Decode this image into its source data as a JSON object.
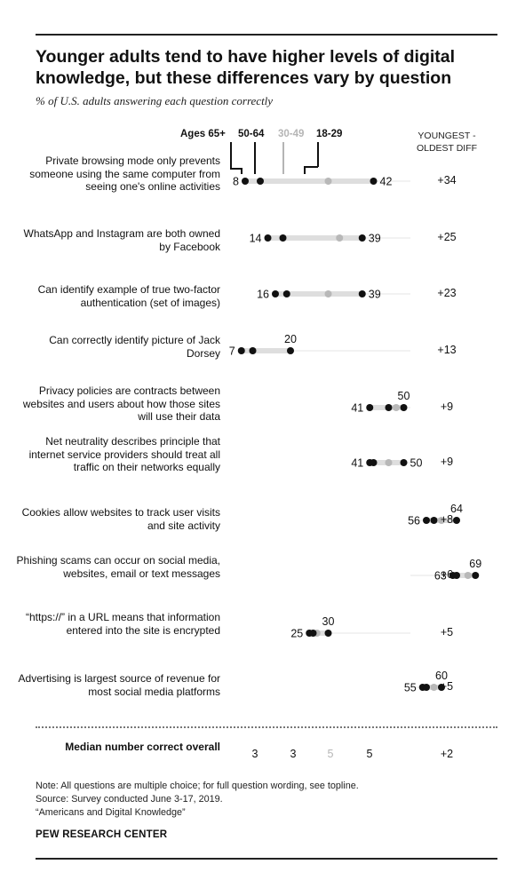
{
  "title": "Younger adults tend to have higher levels of digital knowledge, but these differences vary by question",
  "subtitle": "% of U.S. adults answering each question correctly",
  "age_headers": [
    "Ages 65+",
    "50-64",
    "30-49",
    "18-29"
  ],
  "diff_header": "YOUNGEST - OLDEST DIFF",
  "median_label": "Median number correct overall",
  "median_values": [
    "3",
    "3",
    "5",
    "5"
  ],
  "median_diff": "+2",
  "notes": [
    "Note: All questions are multiple choice; for full question wording, see topline.",
    "Source: Survey conducted June 3-17, 2019.",
    "“Americans and Digital Knowledge”"
  ],
  "brand": "PEW RESEARCH CENTER",
  "colors": {
    "dark": "#111111",
    "light": "#b8b8b8",
    "track": "#e6e6e6"
  },
  "chart_data": {
    "type": "scatter",
    "title": "Younger adults tend to have higher levels of digital knowledge, but these differences vary by question",
    "subtitle": "% of U.S. adults answering each question correctly",
    "series_names": [
      "Ages 65+",
      "50-64",
      "30-49",
      "18-29"
    ],
    "rows": [
      {
        "label": "Private browsing mode only prevents someone using the same computer from seeing one's online activities",
        "values": [
          8,
          12,
          30,
          42
        ],
        "low_label": "8",
        "high_label": "42",
        "high_pos": "right",
        "diff": "+34"
      },
      {
        "label": "WhatsApp and Instagram are both owned by Facebook",
        "values": [
          14,
          18,
          33,
          39
        ],
        "low_label": "14",
        "high_label": "39",
        "high_pos": "right",
        "diff": "+25"
      },
      {
        "label": "Can identify example of true two-factor authentication (set of images)",
        "values": [
          16,
          19,
          30,
          39
        ],
        "low_label": "16",
        "high_label": "39",
        "high_pos": "right",
        "diff": "+23"
      },
      {
        "label": "Can correctly identify picture of Jack Dorsey",
        "values": [
          7,
          10,
          10,
          20
        ],
        "low_label": "7",
        "high_label": "20",
        "high_pos": "above",
        "diff": "+13"
      },
      {
        "label": "Privacy policies are contracts between websites and users about how those sites will use their data",
        "values": [
          41,
          46,
          48,
          50
        ],
        "low_label": "41",
        "high_label": "50",
        "high_pos": "above",
        "diff": "+9"
      },
      {
        "label": "Net neutrality describes principle that internet service providers should treat all traffic on their networks equally",
        "values": [
          41,
          42,
          46,
          50
        ],
        "low_label": "41",
        "high_label": "50",
        "high_pos": "right",
        "diff": "+9"
      },
      {
        "label": "Cookies allow websites to track user visits and site activity",
        "values": [
          56,
          58,
          60,
          64
        ],
        "low_label": "56",
        "high_label": "64",
        "high_pos": "above",
        "diff": "+8"
      },
      {
        "label": "Phishing scams can occur on social media, websites, email or text messages",
        "values": [
          63,
          64,
          67,
          69
        ],
        "low_label": "63",
        "high_label": "69",
        "high_pos": "above",
        "diff": "+6"
      },
      {
        "label": "“https://” in a URL means that information entered into the site is encrypted",
        "values": [
          25,
          26,
          27,
          30
        ],
        "low_label": "25",
        "high_label": "30",
        "high_pos": "above",
        "diff": "+5"
      },
      {
        "label": "Advertising is largest source of revenue for most social media platforms",
        "values": [
          55,
          56,
          58,
          60
        ],
        "low_label": "55",
        "high_label": "60",
        "high_pos": "above",
        "diff": "+5"
      }
    ],
    "x_range": [
      0,
      100
    ]
  }
}
